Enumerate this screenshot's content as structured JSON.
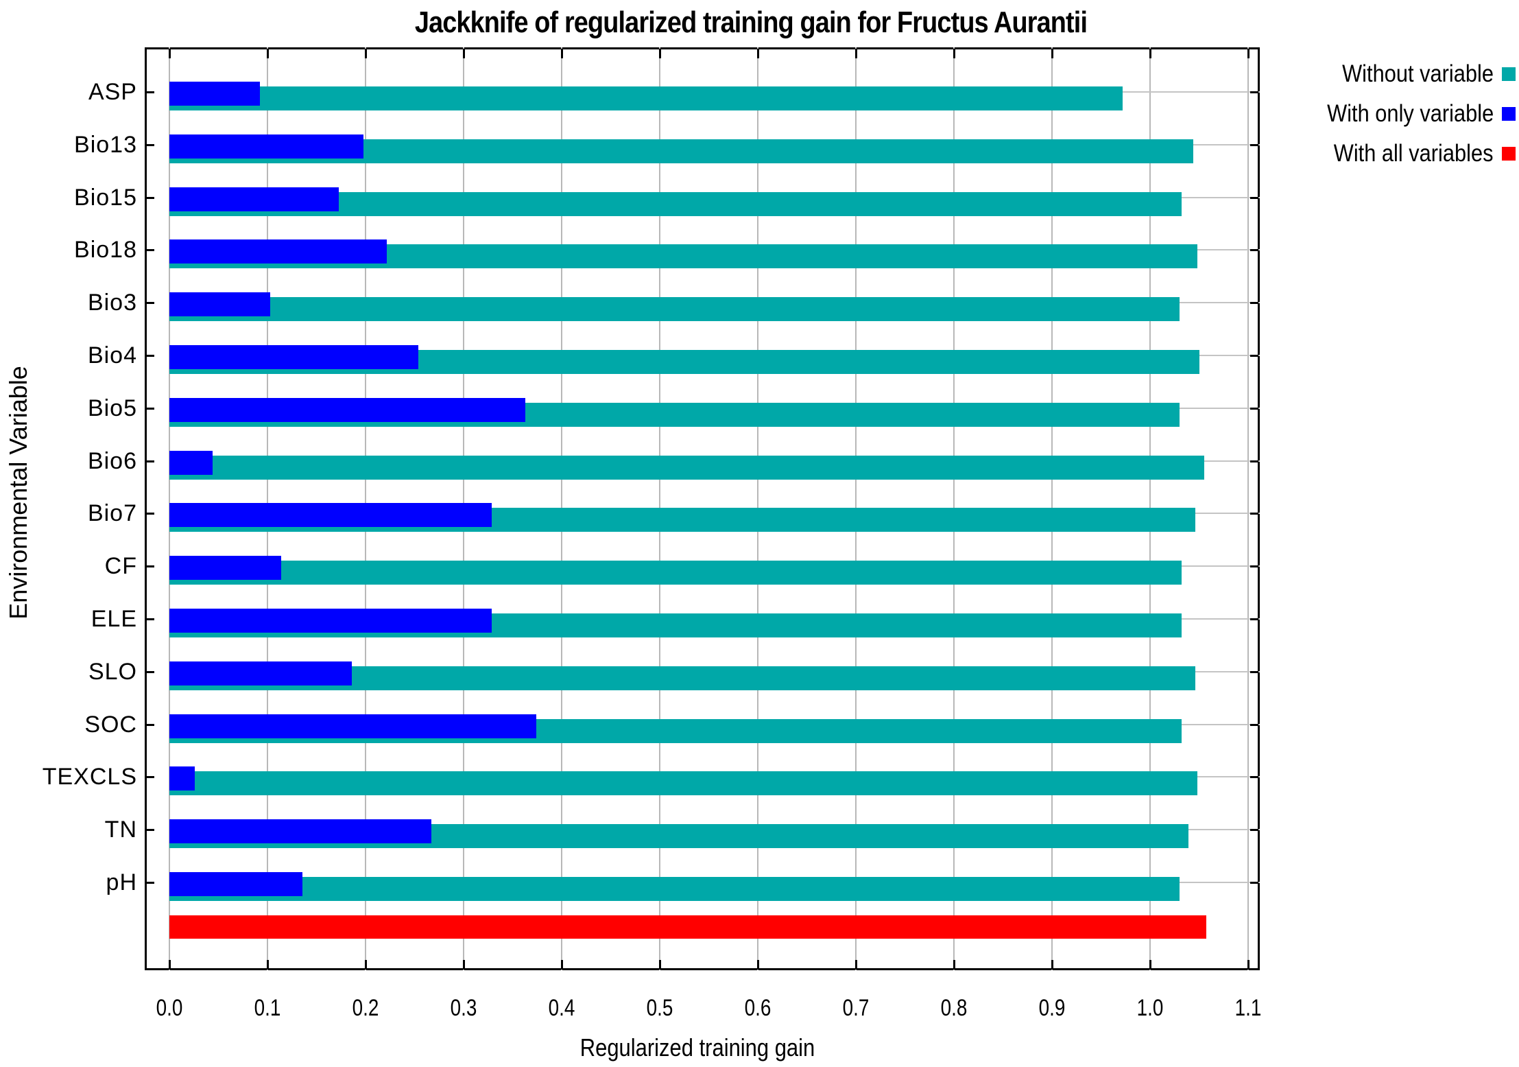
{
  "chart_data": {
    "type": "bar",
    "orientation": "horizontal",
    "title": "Jackknife of regularized training gain for Fructus Aurantii",
    "xlabel": "Regularized training gain",
    "ylabel": "Environmental Variable",
    "xlim": [
      0.0,
      1.1
    ],
    "x_ticks": [
      "0.0",
      "0.1",
      "0.2",
      "0.3",
      "0.4",
      "0.5",
      "0.6",
      "0.7",
      "0.8",
      "0.9",
      "1.0",
      "1.1"
    ],
    "grid": true,
    "legend_position": "top-right-outside",
    "categories": [
      "ASP",
      "Bio13",
      "Bio15",
      "Bio18",
      "Bio3",
      "Bio4",
      "Bio5",
      "Bio6",
      "Bio7",
      "CF",
      "ELE",
      "SLO",
      "SOC",
      "TEXCLS",
      "TN",
      "pH"
    ],
    "series": [
      {
        "name": "Without variable",
        "color": "#00a8a8",
        "values": [
          0.972,
          1.044,
          1.032,
          1.048,
          1.03,
          1.05,
          1.03,
          1.055,
          1.046,
          1.032,
          1.032,
          1.046,
          1.032,
          1.048,
          1.039,
          1.03
        ]
      },
      {
        "name": "With only variable",
        "color": "#0000ff",
        "values": [
          0.092,
          0.198,
          0.173,
          0.222,
          0.103,
          0.254,
          0.363,
          0.044,
          0.329,
          0.114,
          0.329,
          0.186,
          0.374,
          0.026,
          0.267,
          0.136
        ]
      },
      {
        "name": "With all variables",
        "color": "#ff0000",
        "values": [
          1.057
        ]
      }
    ]
  }
}
